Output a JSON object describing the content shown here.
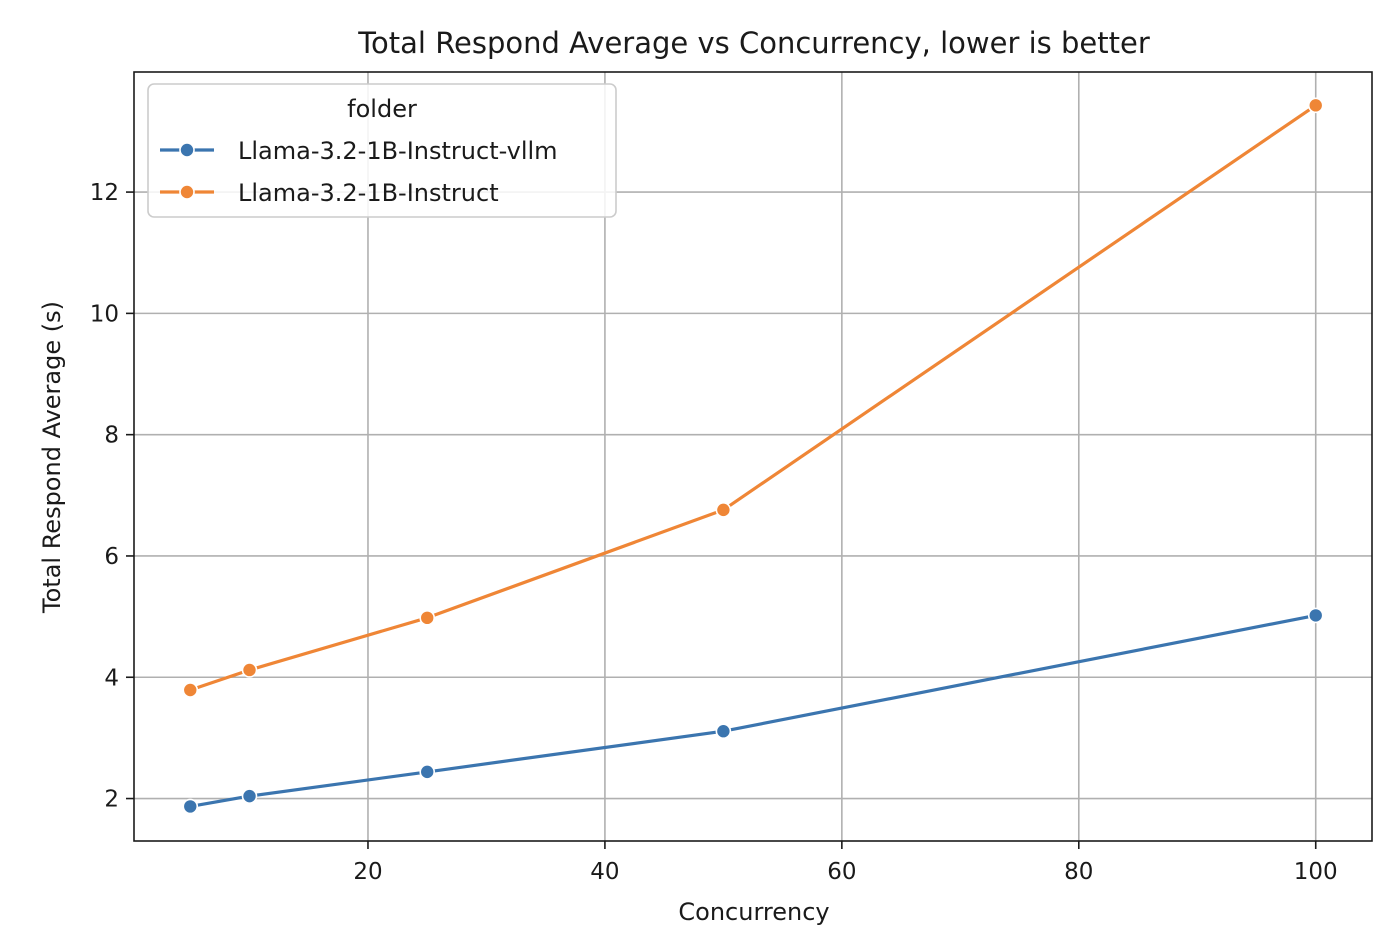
{
  "chart_data": {
    "type": "line",
    "title": "Total Respond Average vs Concurrency, lower is better",
    "xlabel": "Concurrency",
    "ylabel": "Total Respond Average (s)",
    "xlim": [
      0.25,
      104.75
    ],
    "ylim": [
      1.3,
      13.98
    ],
    "xticks": [
      20,
      40,
      60,
      80,
      100
    ],
    "yticks": [
      2,
      4,
      6,
      8,
      10,
      12
    ],
    "grid": true,
    "legend": {
      "title": "folder",
      "position": "upper-left"
    },
    "series": [
      {
        "name": "Llama-3.2-1B-Instruct-vllm",
        "color": "#3b75af",
        "marker": "circle",
        "x": [
          5,
          10,
          25,
          50,
          100
        ],
        "y": [
          1.87,
          2.04,
          2.44,
          3.11,
          5.02
        ]
      },
      {
        "name": "Llama-3.2-1B-Instruct",
        "color": "#ef8636",
        "marker": "circle",
        "x": [
          5,
          10,
          25,
          50,
          100
        ],
        "y": [
          3.79,
          4.12,
          4.98,
          6.76,
          13.43
        ]
      }
    ]
  }
}
